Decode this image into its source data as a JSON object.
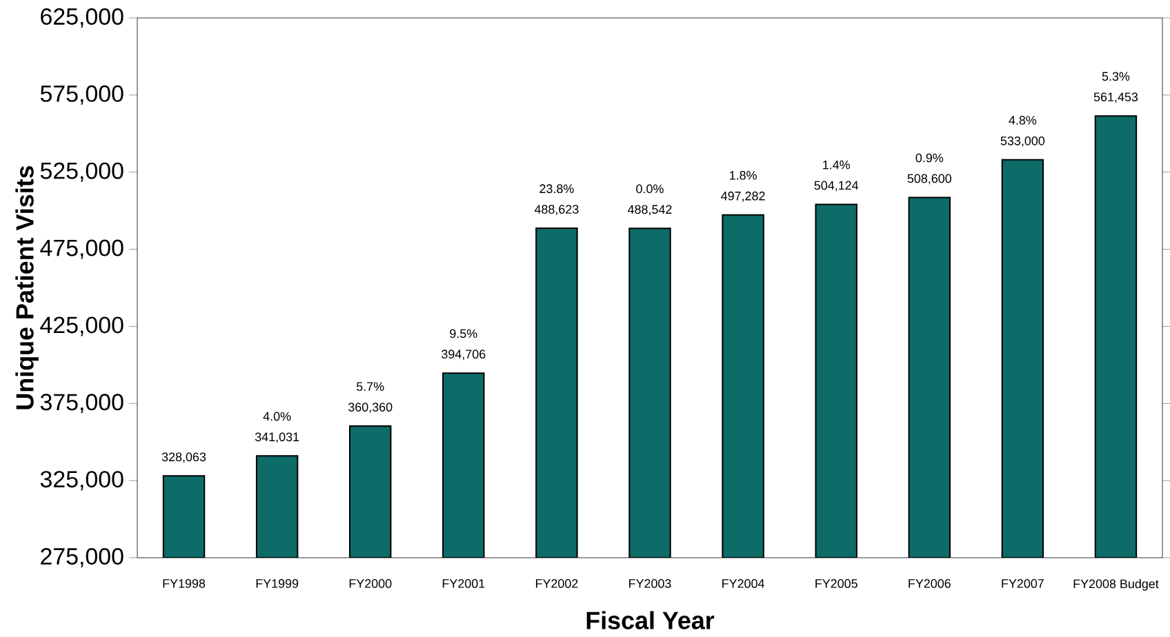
{
  "chart_data": {
    "type": "bar",
    "xlabel": "Fiscal Year",
    "ylabel": "Unique Patient Visits",
    "categories": [
      "FY1998",
      "FY1999",
      "FY2000",
      "FY2001",
      "FY2002",
      "FY2003",
      "FY2004",
      "FY2005",
      "FY2006",
      "FY2007",
      "FY2008 Budget"
    ],
    "values": [
      328063,
      341031,
      360360,
      394706,
      488623,
      488542,
      497282,
      504124,
      508600,
      533000,
      561453
    ],
    "value_labels": [
      "328,063",
      "341,031",
      "360,360",
      "394,706",
      "488,623",
      "488,542",
      "497,282",
      "504,124",
      "508,600",
      "533,000",
      "561,453"
    ],
    "color": "#0d6b68",
    "ylim": [
      275000,
      625000
    ],
    "yticks": [
      {
        "value": 275000,
        "label": "275,000"
      },
      {
        "value": 325000,
        "label": "325,000"
      },
      {
        "value": 375000,
        "label": "375,000"
      },
      {
        "value": 425000,
        "label": "425,000"
      },
      {
        "value": 475000,
        "label": "475,000"
      },
      {
        "value": 525000,
        "label": "525,000"
      },
      {
        "value": 575000,
        "label": "575,000"
      },
      {
        "value": 625000,
        "label": "625,000"
      }
    ],
    "annotations": [
      {
        "text": "4.0%",
        "x": "FY1999",
        "y": 341031
      },
      {
        "text": "5.7%",
        "x": "FY2000",
        "y": 360360
      },
      {
        "text": "9.5%",
        "x": "FY2001",
        "y": 394706
      },
      {
        "text": "23.8%",
        "x": "FY2002",
        "y": 488623
      },
      {
        "text": "0.0%",
        "x": "FY2003",
        "y": 488542
      },
      {
        "text": "1.8%",
        "x": "FY2004",
        "y": 497282
      },
      {
        "text": "1.4%",
        "x": "FY2005",
        "y": 504124
      },
      {
        "text": "0.9%",
        "x": "FY2006",
        "y": 508600
      },
      {
        "text": "4.8%",
        "x": "FY2007",
        "y": 533000
      },
      {
        "text": "5.3%",
        "x": "FY2008 Budget",
        "y": 561453
      }
    ]
  }
}
